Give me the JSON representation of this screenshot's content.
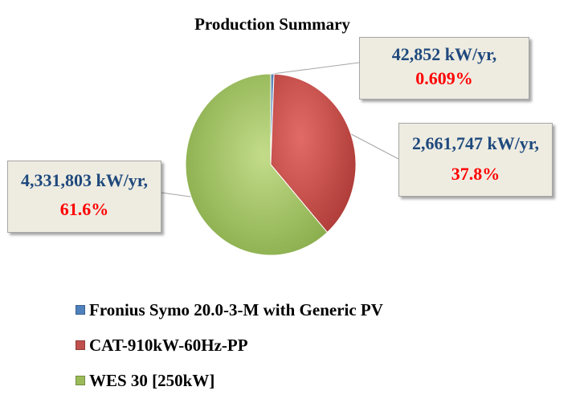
{
  "chart_data": {
    "type": "pie",
    "title": "Production Summary",
    "slices": [
      {
        "name": "Fronius Symo 20.0-3-M with Generic PV",
        "value": 42852,
        "percent": 0.609,
        "value_label": "42,852 kW/yr,",
        "percent_label": "0.609%",
        "color": "#4f81bd"
      },
      {
        "name": "CAT-910kW-60Hz-PP",
        "value": 2661747,
        "percent": 37.8,
        "value_label": "2,661,747 kW/yr,",
        "percent_label": "37.8%",
        "color": "#c0504d"
      },
      {
        "name": "WES 30 [250kW]",
        "value": 4331803,
        "percent": 61.6,
        "value_label": "4,331,803 kW/yr,",
        "percent_label": "61.6%",
        "color": "#9bbb59"
      }
    ],
    "legend": "bottom-left"
  }
}
